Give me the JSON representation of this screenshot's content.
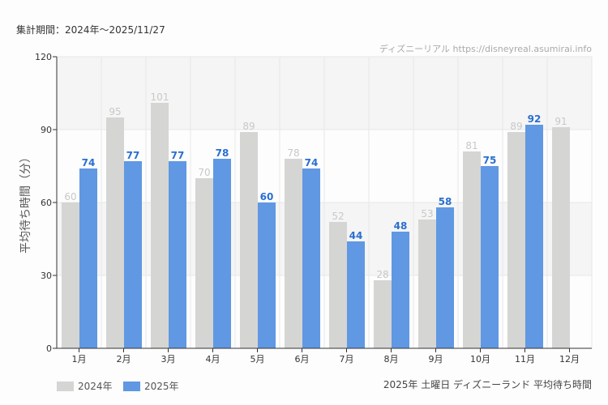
{
  "header": {
    "period": "集計期間：2024年～2025/11/27",
    "credit": "ディズニーリアル https://disneyreal.asumirai.info"
  },
  "footer": {
    "subtitle": "2025年 土曜日 ディズニーランド 平均待ち時間"
  },
  "chart_data": {
    "type": "bar",
    "title": "",
    "xlabel": "",
    "ylabel": "平均待ち時間（分）",
    "ylim": [
      0,
      120
    ],
    "yticks": [
      0,
      30,
      60,
      90,
      120
    ],
    "grid": true,
    "legend_position": "bottom-left",
    "categories": [
      "1月",
      "2月",
      "3月",
      "4月",
      "5月",
      "6月",
      "7月",
      "8月",
      "9月",
      "10月",
      "11月",
      "12月"
    ],
    "series": [
      {
        "name": "2024年",
        "color": "#d5d5d3",
        "label_color": "#c8c8c8",
        "values": [
          60,
          95,
          101,
          70,
          89,
          78,
          52,
          28,
          53,
          81,
          89,
          91
        ]
      },
      {
        "name": "2025年",
        "color": "#6098e3",
        "label_color": "#2a6fd0",
        "values": [
          74,
          77,
          77,
          78,
          60,
          74,
          44,
          48,
          58,
          75,
          92,
          null
        ]
      }
    ]
  }
}
